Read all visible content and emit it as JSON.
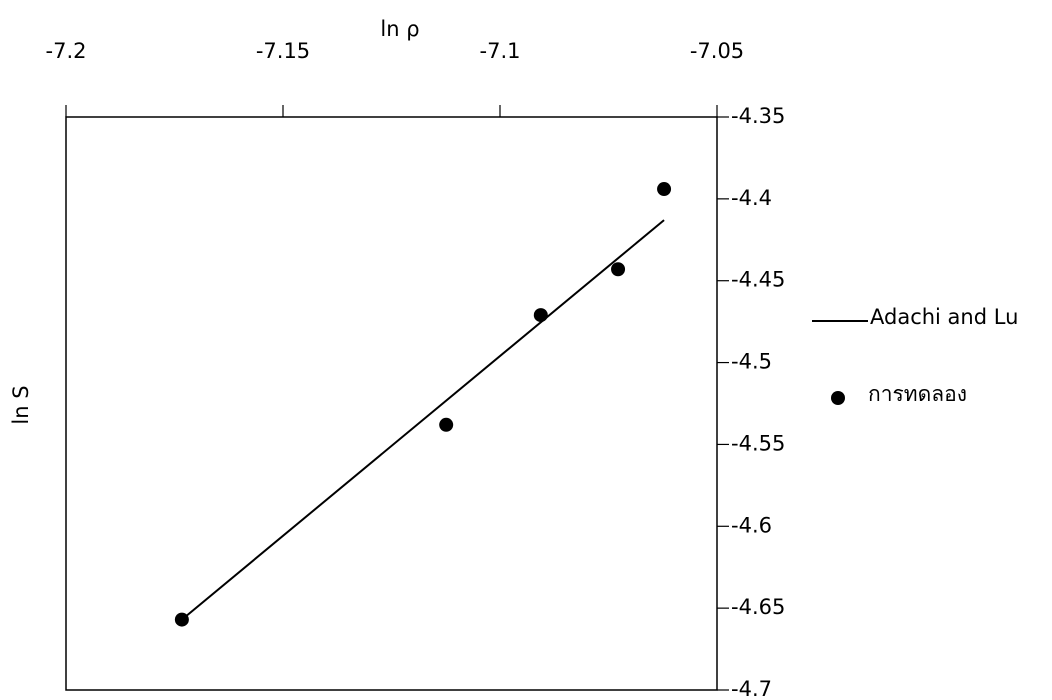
{
  "chart_data": {
    "type": "scatter",
    "x_label": "ln ρ",
    "y_label": "ln S",
    "xlim": [
      -7.2,
      -7.05
    ],
    "xticks": [
      -7.2,
      -7.15,
      -7.1,
      -7.05
    ],
    "ylim": [
      -4.7,
      -4.35
    ],
    "yticks": [
      -4.35,
      -4.4,
      -4.45,
      -4.5,
      -4.55,
      -4.6,
      -4.65,
      -4.7
    ],
    "x_axis_position": "top",
    "y_axis_position": "right",
    "legend": "right",
    "grid": false,
    "series": [
      {
        "name": "Adachi and Lu",
        "type": "line",
        "color": "#000000",
        "x": [
          -7.1733,
          -7.0622
        ],
        "values": [
          -4.657,
          -4.413
        ]
      },
      {
        "name": "การทดลอง",
        "type": "scatter",
        "color": "#000000",
        "x": [
          -7.1733,
          -7.1124,
          -7.0906,
          -7.0728,
          -7.0622
        ],
        "values": [
          -4.657,
          -4.538,
          -4.471,
          -4.443,
          -4.394
        ]
      }
    ]
  }
}
